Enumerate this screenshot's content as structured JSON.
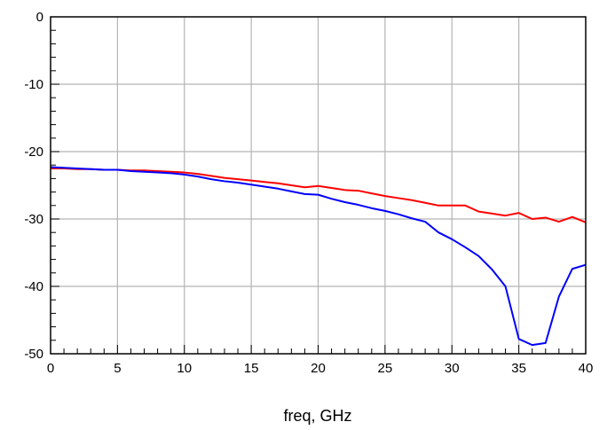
{
  "chart_data": {
    "type": "line",
    "title": "",
    "xlabel": "freq, GHz",
    "ylabel": "",
    "xlim": [
      0,
      40
    ],
    "ylim": [
      -50,
      0
    ],
    "xticks": [
      0,
      5,
      10,
      15,
      20,
      25,
      30,
      35,
      40
    ],
    "yticks": [
      0,
      -10,
      -20,
      -30,
      -40,
      -50
    ],
    "x_minor_step": 1,
    "y_minor_step": 2,
    "grid": true,
    "legend": "none",
    "x": [
      0,
      1,
      2,
      3,
      4,
      5,
      6,
      7,
      8,
      9,
      10,
      11,
      12,
      13,
      14,
      15,
      16,
      17,
      18,
      19,
      20,
      21,
      22,
      23,
      24,
      25,
      26,
      27,
      28,
      29,
      30,
      31,
      32,
      33,
      34,
      35,
      36,
      37,
      38,
      39,
      40
    ],
    "series": [
      {
        "color": "#ff0000",
        "values": [
          -22.5,
          -22.5,
          -22.6,
          -22.6,
          -22.7,
          -22.7,
          -22.8,
          -22.8,
          -22.9,
          -23.0,
          -23.1,
          -23.3,
          -23.6,
          -23.9,
          -24.1,
          -24.3,
          -24.5,
          -24.7,
          -25.0,
          -25.3,
          -25.1,
          -25.4,
          -25.7,
          -25.8,
          -26.2,
          -26.6,
          -26.9,
          -27.2,
          -27.6,
          -28.0,
          -28.0,
          -28.0,
          -28.9,
          -29.2,
          -29.5,
          -29.1,
          -30.0,
          -29.8,
          -30.4,
          -29.7,
          -30.5
        ]
      },
      {
        "color": "#0000ff",
        "values": [
          -22.3,
          -22.4,
          -22.5,
          -22.6,
          -22.7,
          -22.7,
          -22.9,
          -23.0,
          -23.1,
          -23.2,
          -23.4,
          -23.7,
          -24.1,
          -24.4,
          -24.6,
          -24.9,
          -25.2,
          -25.5,
          -25.9,
          -26.3,
          -26.4,
          -27.0,
          -27.5,
          -27.9,
          -28.4,
          -28.8,
          -29.3,
          -29.9,
          -30.4,
          -32.0,
          -33.0,
          -34.2,
          -35.5,
          -37.5,
          -40.0,
          -47.8,
          -48.7,
          -48.4,
          -41.5,
          -37.4,
          -36.8
        ]
      }
    ]
  },
  "colors": {
    "grid": "#b4b4b4",
    "frame": "#000000",
    "background": "#ffffff"
  }
}
